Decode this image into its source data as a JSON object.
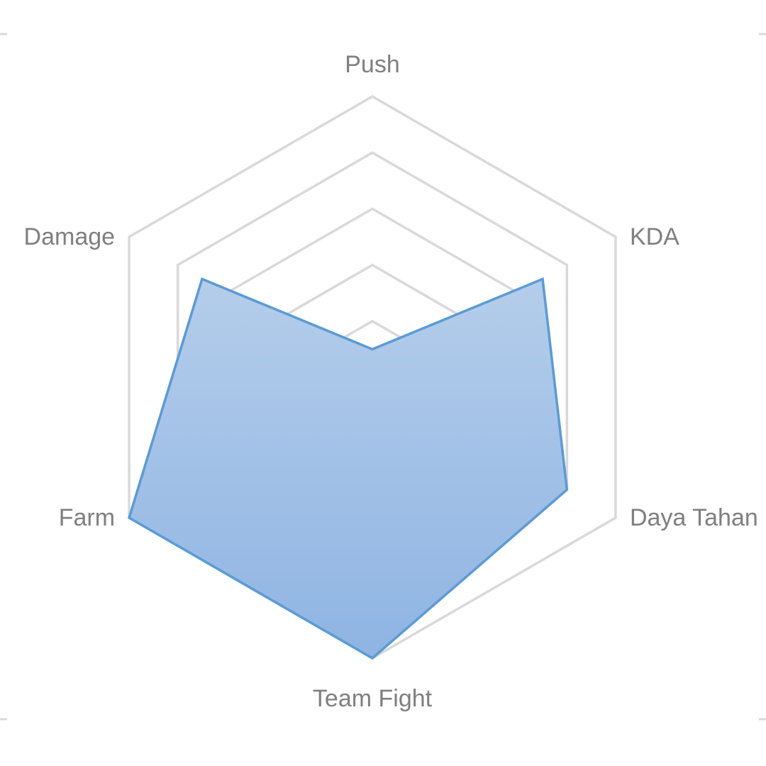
{
  "chart_data": {
    "type": "radar",
    "axes": [
      "Push",
      "KDA",
      "Daya Tahan",
      "Team Fight",
      "Farm",
      "Damage"
    ],
    "values": [
      0.5,
      3.5,
      4.0,
      5.0,
      5.0,
      3.5
    ],
    "rmax": 5,
    "grid_levels": [
      1,
      2,
      3,
      4,
      5
    ],
    "grid": true,
    "legend": "none",
    "title": "",
    "series_fill_top": "#b4cdea",
    "series_fill_bottom": "#8fb4e3",
    "series_stroke": "#5b9bd5",
    "grid_color": "#d9d9d9",
    "label_color": "#7f7f7f"
  }
}
